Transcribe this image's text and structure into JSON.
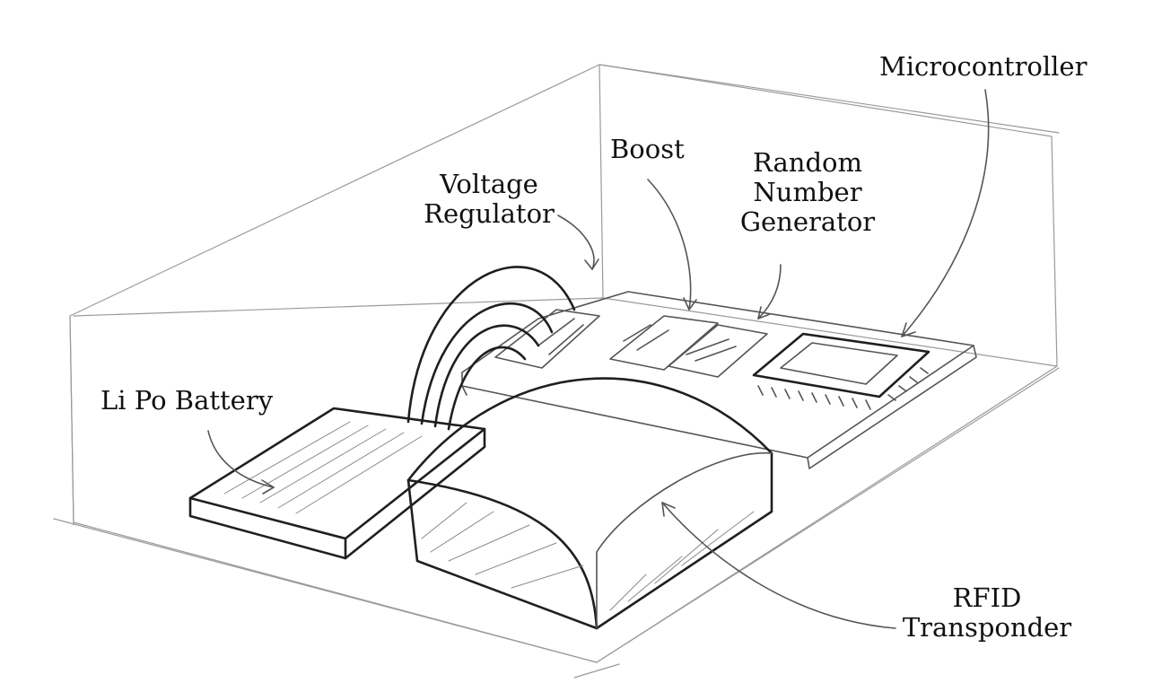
{
  "labels": {
    "microcontroller": "Microcontroller",
    "boost": "Boost",
    "random_number_generator": [
      "Random",
      "Number",
      "Generator"
    ],
    "voltage_regulator": [
      "Voltage",
      "Regulator"
    ],
    "battery": "Li Po Battery",
    "rfid_transponder": [
      "RFID",
      "Transponder"
    ]
  },
  "colors": {
    "ink": "#1f1f1f",
    "pencil_light": "#9a9a9a",
    "paper": "#ffffff"
  }
}
